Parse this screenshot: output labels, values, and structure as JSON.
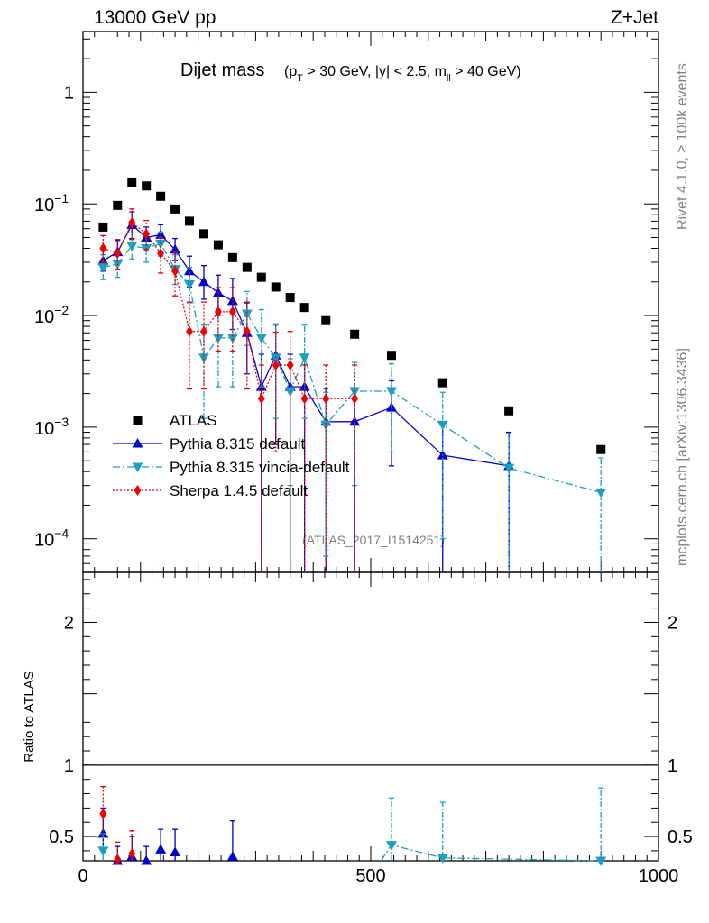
{
  "header": {
    "energy_label": "13000 GeV pp",
    "process_label": "Z+Jet",
    "rivet_label": "Rivet 4.1.0, ≥ 100k events",
    "mcplots_label": "mcplots.cern.ch [arXiv:1306.3436]"
  },
  "chart_data": {
    "type": "scatter",
    "title": "Dijet mass",
    "title_cuts": "(p_T > 30 GeV, |y| < 2.5, m_ll > 40 GeV)",
    "watermark": "(ATLAS_2017_I1514251)",
    "xlabel": "",
    "ylabel": "",
    "xlim": [
      0,
      1000
    ],
    "ylim": [
      5e-05,
      3.5
    ],
    "yscale": "log",
    "x_ticks": [
      0,
      500,
      1000
    ],
    "x_tick_labels": [
      "0",
      "500",
      "1000"
    ],
    "y_ticks": [
      1,
      0.1,
      0.01,
      0.001,
      0.0001
    ],
    "y_tick_labels": [
      {
        "base": "1",
        "exp": ""
      },
      {
        "base": "10",
        "exp": "−1"
      },
      {
        "base": "10",
        "exp": "−2"
      },
      {
        "base": "10",
        "exp": "−3"
      },
      {
        "base": "10",
        "exp": "−4"
      }
    ],
    "legend": {
      "position": "bottom-left",
      "entries": [
        "ATLAS",
        "Pythia 8.315 default",
        "Pythia 8.315 vincia-default",
        "Sherpa 1.4.5 default"
      ]
    },
    "series": [
      {
        "name": "ATLAS",
        "color": "#000000",
        "marker": "square",
        "x": [
          35,
          60,
          85,
          110,
          135,
          160,
          185,
          210,
          235,
          260,
          285,
          310,
          335,
          360,
          385,
          422,
          472,
          536,
          625,
          740,
          900
        ],
        "y": [
          0.062,
          0.097,
          0.157,
          0.145,
          0.117,
          0.09,
          0.07,
          0.054,
          0.043,
          0.033,
          0.027,
          0.022,
          0.018,
          0.0145,
          0.0118,
          0.009,
          0.0068,
          0.0044,
          0.0025,
          0.0014,
          0.00063
        ]
      },
      {
        "name": "Pythia 8.315 default",
        "color": "#0000cc",
        "marker": "triangle-up",
        "line": "solid",
        "x": [
          35,
          60,
          85,
          110,
          135,
          160,
          185,
          210,
          235,
          260,
          285,
          310,
          335,
          360,
          385,
          422,
          472,
          536,
          625,
          740
        ],
        "y": [
          0.031,
          0.037,
          0.065,
          0.05,
          0.053,
          0.039,
          0.025,
          0.02,
          0.016,
          0.0135,
          0.007,
          0.0023,
          0.0044,
          0.0023,
          0.0023,
          0.00112,
          0.00112,
          0.0015,
          0.00056,
          0.00045
        ],
        "err_low": [
          0.006,
          0.008,
          0.016,
          0.01,
          0.009,
          0.008,
          0.007,
          0.006,
          0.006,
          0.006,
          0.004,
          0.00227,
          0.0037,
          0.00227,
          0.00227,
          0.00109,
          0.00109,
          0.00105,
          0.00055,
          0.00042
        ],
        "err_high": [
          0.008,
          0.01,
          0.02,
          0.012,
          0.012,
          0.01,
          0.009,
          0.008,
          0.007,
          0.008,
          0.006,
          0.0022,
          0.004,
          0.0022,
          0.0022,
          0.0011,
          0.0011,
          0.0011,
          0.00055,
          0.00045
        ]
      },
      {
        "name": "Pythia 8.315 vincia-default",
        "color": "#1a9fbf",
        "marker": "triangle-down",
        "line": "dashdot",
        "x": [
          35,
          60,
          85,
          110,
          135,
          160,
          185,
          210,
          235,
          260,
          285,
          310,
          335,
          360,
          385,
          422,
          472,
          536,
          625,
          740,
          900
        ],
        "y": [
          0.027,
          0.029,
          0.042,
          0.04,
          0.044,
          0.026,
          0.019,
          0.0042,
          0.0063,
          0.0063,
          0.0104,
          0.0063,
          0.0042,
          0.0021,
          0.0042,
          0.00105,
          0.0021,
          0.0021,
          0.00105,
          0.00043,
          0.00026
        ],
        "err_low": [
          0.006,
          0.007,
          0.01,
          0.01,
          0.01,
          0.007,
          0.006,
          0.003,
          0.004,
          0.004,
          0.005,
          0.004,
          0.003,
          0.0018,
          0.003,
          0.00098,
          0.0018,
          0.0015,
          0.00095,
          0.00041,
          0.00025
        ],
        "err_high": [
          0.008,
          0.009,
          0.013,
          0.012,
          0.012,
          0.009,
          0.008,
          0.004,
          0.005,
          0.005,
          0.006,
          0.005,
          0.004,
          0.002,
          0.004,
          0.001,
          0.0017,
          0.0016,
          0.001,
          0.00045,
          0.00027
        ]
      },
      {
        "name": "Sherpa 1.4.5 default",
        "color": "#ee0000",
        "marker": "diamond",
        "line": "dotted",
        "x": [
          35,
          60,
          85,
          110,
          135,
          160,
          185,
          210,
          235,
          260,
          285,
          310,
          335,
          360,
          385,
          422,
          472
        ],
        "y": [
          0.04,
          0.036,
          0.068,
          0.054,
          0.036,
          0.025,
          0.0072,
          0.0072,
          0.0108,
          0.0108,
          0.0072,
          0.0018,
          0.0036,
          0.0036,
          0.0018,
          0.0018,
          0.0018
        ],
        "err_low": [
          0.01,
          0.01,
          0.02,
          0.015,
          0.012,
          0.01,
          0.005,
          0.005,
          0.006,
          0.006,
          0.005,
          0.00176,
          0.003,
          0.00355,
          0.00176,
          0.00176,
          0.00176
        ],
        "err_high": [
          0.012,
          0.012,
          0.022,
          0.017,
          0.014,
          0.012,
          0.006,
          0.006,
          0.007,
          0.007,
          0.006,
          0.0018,
          0.0035,
          0.0036,
          0.0018,
          0.0018,
          0.0018
        ]
      }
    ],
    "ratio": {
      "ylabel": "Ratio to ATLAS",
      "ylim": [
        0.33,
        2.35
      ],
      "y_ticks": [
        0.5,
        1,
        2
      ],
      "y_tick_labels": [
        "0.5",
        "1",
        "2"
      ],
      "reference_value": 1,
      "series": [
        {
          "name": "Pythia 8.315 default",
          "x": [
            35,
            60,
            85,
            110,
            135,
            160,
            260
          ],
          "y": [
            0.52,
            0.33,
            0.36,
            0.33,
            0.41,
            0.39,
            0.36
          ],
          "err_low": [
            0.1,
            0.05,
            0.06,
            0.05,
            0.08,
            0.09,
            0.1
          ],
          "err_high": [
            0.18,
            0.1,
            0.14,
            0.1,
            0.14,
            0.16,
            0.25
          ]
        },
        {
          "name": "Pythia 8.315 vincia-default",
          "x": [
            35,
            536,
            625,
            900
          ],
          "y": [
            0.4,
            0.44,
            0.35,
            0.33
          ],
          "err_low": [
            0.08,
            0.12,
            0.1,
            0.05
          ],
          "err_high": [
            0.12,
            0.33,
            0.39,
            0.51
          ]
        },
        {
          "name": "Sherpa 1.4.5 default",
          "x": [
            35,
            60,
            85
          ],
          "y": [
            0.66,
            0.34,
            0.38
          ],
          "err_low": [
            0.15,
            0.05,
            0.08
          ],
          "err_high": [
            0.19,
            0.12,
            0.16
          ]
        }
      ]
    }
  }
}
